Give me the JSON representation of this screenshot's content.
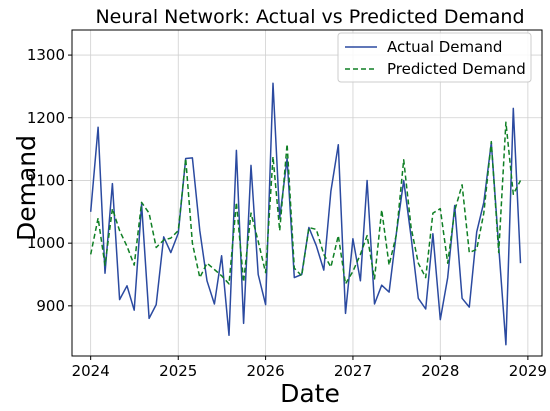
{
  "chart_data": {
    "type": "line",
    "title": "Neural Network: Actual vs Predicted Demand",
    "xlabel": "Date",
    "ylabel": "Demand",
    "xlim": [
      "2023-10-15",
      "2029-03-01"
    ],
    "ylim": [
      820,
      1340
    ],
    "xticks": [
      "2024",
      "2025",
      "2026",
      "2027",
      "2028",
      "2029"
    ],
    "xtick_dates": [
      "2024-01-01",
      "2025-01-01",
      "2026-01-01",
      "2027-01-01",
      "2028-01-01",
      "2029-01-01"
    ],
    "yticks": [
      900,
      1000,
      1100,
      1200,
      1300
    ],
    "grid": true,
    "legend": {
      "position": "top-right"
    },
    "x": [
      "2024-01-01",
      "2024-02-01",
      "2024-03-01",
      "2024-04-01",
      "2024-05-01",
      "2024-06-01",
      "2024-07-01",
      "2024-08-01",
      "2024-09-01",
      "2024-10-01",
      "2024-11-01",
      "2024-12-01",
      "2025-01-01",
      "2025-02-01",
      "2025-03-01",
      "2025-04-01",
      "2025-05-01",
      "2025-06-01",
      "2025-07-01",
      "2025-08-01",
      "2025-09-01",
      "2025-10-01",
      "2025-11-01",
      "2025-12-01",
      "2026-01-01",
      "2026-02-01",
      "2026-03-01",
      "2026-04-01",
      "2026-05-01",
      "2026-06-01",
      "2026-07-01",
      "2026-08-01",
      "2026-09-01",
      "2026-10-01",
      "2026-11-01",
      "2026-12-01",
      "2027-01-01",
      "2027-02-01",
      "2027-03-01",
      "2027-04-01",
      "2027-05-01",
      "2027-06-01",
      "2027-07-01",
      "2027-08-01",
      "2027-09-01",
      "2027-10-01",
      "2027-11-01",
      "2027-12-01",
      "2028-01-01",
      "2028-02-01",
      "2028-03-01",
      "2028-04-01",
      "2028-05-01",
      "2028-06-01",
      "2028-07-01",
      "2028-08-01",
      "2028-09-01",
      "2028-10-01",
      "2028-11-01",
      "2028-12-01"
    ],
    "series": [
      {
        "name": "Actual Demand",
        "color": "#2b4aa0",
        "style": "solid",
        "values": [
          1050,
          1185,
          952,
          1095,
          910,
          932,
          893,
          1062,
          880,
          902,
          1010,
          985,
          1016,
          1135,
          1136,
          1020,
          940,
          903,
          980,
          853,
          1148,
          872,
          1124,
          950,
          902,
          1255,
          1040,
          1135,
          945,
          950,
          1025,
          996,
          957,
          1083,
          1157,
          888,
          1007,
          940,
          1100,
          903,
          933,
          922,
          1015,
          1100,
          1010,
          912,
          895,
          1015,
          878,
          945,
          1060,
          912,
          898,
          1018,
          1065,
          1160,
          995,
          838,
          1215,
          968
        ]
      },
      {
        "name": "Predicted Demand",
        "color": "#0f7f24",
        "style": "dashed",
        "values": [
          982,
          1040,
          965,
          1055,
          1020,
          995,
          965,
          1065,
          1048,
          993,
          1005,
          1008,
          1020,
          1135,
          1000,
          945,
          968,
          958,
          948,
          935,
          1065,
          938,
          1048,
          1003,
          953,
          1138,
          1020,
          1158,
          960,
          948,
          1025,
          1022,
          982,
          962,
          1012,
          935,
          955,
          982,
          1012,
          943,
          1053,
          965,
          1013,
          1133,
          1025,
          968,
          945,
          1048,
          1055,
          968,
          1052,
          1093,
          985,
          990,
          1048,
          1162,
          985,
          1193,
          1078,
          1100
        ]
      }
    ]
  }
}
